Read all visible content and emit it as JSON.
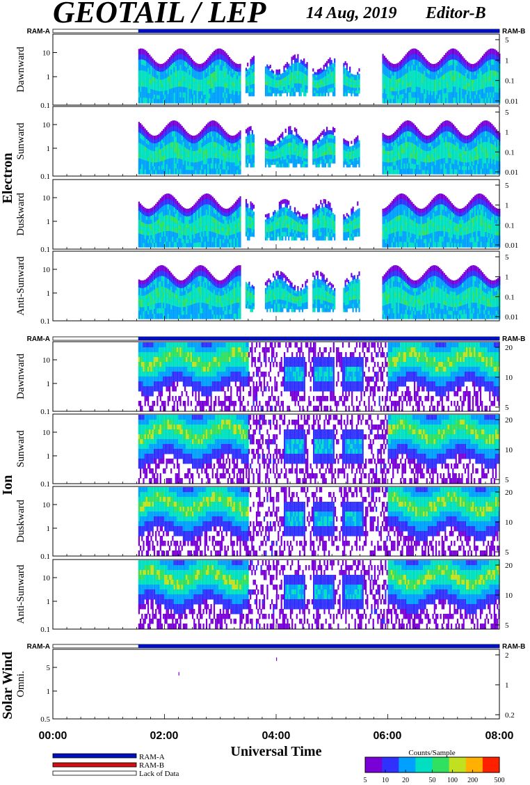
{
  "header": {
    "title": "GEOTAIL / LEP",
    "date": "14 Aug, 2019",
    "editor": "Editor-B"
  },
  "ram_labels": {
    "a": "RAM-A",
    "b": "RAM-B"
  },
  "groups": [
    {
      "label": "Electron"
    },
    {
      "label": "Ion"
    },
    {
      "label": "Solar Wind"
    }
  ],
  "panels": [
    {
      "id": "electron-dawnward",
      "label": "Dawnward",
      "left_ticks": [
        "10",
        "1",
        "0.1"
      ],
      "right_ticks": [
        "5",
        "1",
        "0.1",
        "0.01"
      ]
    },
    {
      "id": "electron-sunward",
      "label": "Sunward",
      "left_ticks": [
        "10",
        "1",
        "0.1"
      ],
      "right_ticks": [
        "5",
        "1",
        "0.1",
        "0.01"
      ]
    },
    {
      "id": "electron-duskward",
      "label": "Duskward",
      "left_ticks": [
        "10",
        "1",
        "0.1"
      ],
      "right_ticks": [
        "5",
        "1",
        "0.1",
        "0.01"
      ]
    },
    {
      "id": "electron-anti-sunward",
      "label": "Anti-Sunward",
      "left_ticks": [
        "10",
        "1",
        "0.1"
      ],
      "right_ticks": [
        "5",
        "1",
        "0.1",
        "0.01"
      ]
    },
    {
      "id": "ion-dawnward",
      "label": "Dawnward",
      "left_ticks": [
        "10",
        "1",
        "0.1"
      ],
      "right_ticks": [
        "20",
        "10",
        "5"
      ]
    },
    {
      "id": "ion-sunward",
      "label": "Sunward",
      "left_ticks": [
        "10",
        "1",
        "0.1"
      ],
      "right_ticks": [
        "20",
        "10",
        "5"
      ]
    },
    {
      "id": "ion-duskward",
      "label": "Duskward",
      "left_ticks": [
        "10",
        "1",
        "0.1"
      ],
      "right_ticks": [
        "20",
        "10",
        "5"
      ]
    },
    {
      "id": "ion-anti-sunward",
      "label": "Anti-Sunward",
      "left_ticks": [
        "10",
        "1",
        "0.1"
      ],
      "right_ticks": [
        "20",
        "10",
        "5"
      ]
    },
    {
      "id": "solar-wind-omni",
      "label": "Omni.",
      "left_ticks": [
        "5",
        "1",
        "0.5"
      ],
      "right_ticks": [
        "2",
        "1",
        "0.2"
      ]
    }
  ],
  "time_ticks": [
    "00:00",
    "02:00",
    "04:00",
    "06:00",
    "08:00"
  ],
  "xlabel": "Universal Time",
  "legend": {
    "items": [
      {
        "label": "RAM-A",
        "color": "#0010c0"
      },
      {
        "label": "RAM-B",
        "color": "#d01010"
      },
      {
        "label": "Lack of Data",
        "color": "#ffffff"
      }
    ]
  },
  "colorbar": {
    "title": "Counts/Sample",
    "ticks": [
      "5",
      "10",
      "20",
      "50",
      "100",
      "200",
      "500"
    ]
  },
  "chart_data": {
    "type": "heatmap",
    "x_range": [
      "00:00",
      "08:00"
    ],
    "data_start": "01:32",
    "ram_mode": "RAM-A",
    "colorscale": [
      "#7a00d8",
      "#3030ff",
      "#00a0ff",
      "#00e0c0",
      "#30e060",
      "#c0e020",
      "#ffb000",
      "#ff2000"
    ],
    "colorbar_range": [
      5,
      500
    ],
    "electron_regions": [
      {
        "t0": 1.53,
        "t1": 3.35,
        "mode": "continuous"
      },
      {
        "t0": 3.45,
        "t1": 3.6,
        "mode": "patch"
      },
      {
        "t0": 3.8,
        "t1": 4.55,
        "mode": "patch"
      },
      {
        "t0": 4.65,
        "t1": 5.05,
        "mode": "patch"
      },
      {
        "t0": 5.2,
        "t1": 5.5,
        "mode": "patch"
      },
      {
        "t0": 5.9,
        "t1": 8.0,
        "mode": "continuous"
      }
    ],
    "ion_regions": [
      {
        "t0": 1.53,
        "t1": 3.5,
        "mode": "band"
      },
      {
        "t0": 3.5,
        "t1": 4.0,
        "mode": "noise"
      },
      {
        "t0": 4.0,
        "t1": 5.7,
        "mode": "blobs"
      },
      {
        "t0": 5.7,
        "t1": 6.0,
        "mode": "noise"
      },
      {
        "t0": 6.0,
        "t1": 8.0,
        "mode": "band"
      }
    ],
    "solar_wind_points": [
      {
        "t": "02:15",
        "energy": 3.0
      },
      {
        "t": "04:00",
        "energy": 7.0
      }
    ]
  }
}
